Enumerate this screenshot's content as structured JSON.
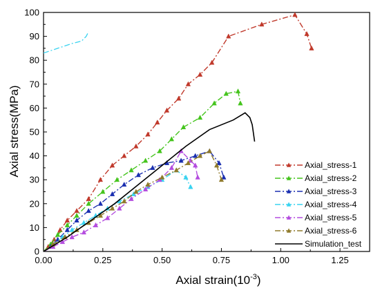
{
  "chart_data": {
    "type": "line",
    "xlabel": "Axial strain(10",
    "xlabel_sup": "-3",
    "xlabel_end": ")",
    "ylabel": "Axial stress(MPa)",
    "xlim": [
      0,
      1.375
    ],
    "ylim": [
      0,
      100
    ],
    "x_ticks": [
      "0.00",
      "0.25",
      "0.50",
      "0.75",
      "1.00",
      "1.25"
    ],
    "x_tick_values": [
      0,
      0.25,
      0.5,
      0.75,
      1.0,
      1.25
    ],
    "y_ticks": [
      "0",
      "10",
      "20",
      "30",
      "40",
      "50",
      "60",
      "70",
      "80",
      "90",
      "100"
    ],
    "y_tick_values": [
      0,
      10,
      20,
      30,
      40,
      50,
      60,
      70,
      80,
      90,
      100
    ],
    "legend_position": "right",
    "series": [
      {
        "name": "Axial_stress-1",
        "color": "#c0392b",
        "dash": "8,3,2,3",
        "marker": "triangle",
        "x": [
          0.0,
          0.02,
          0.045,
          0.07,
          0.1,
          0.14,
          0.19,
          0.24,
          0.29,
          0.34,
          0.39,
          0.44,
          0.48,
          0.52,
          0.57,
          0.61,
          0.66,
          0.71,
          0.78,
          0.92,
          1.06,
          1.11,
          1.13
        ],
        "y": [
          0,
          2,
          5,
          9,
          13,
          17,
          22,
          30,
          36,
          40,
          44,
          49,
          54,
          59,
          64,
          70,
          74,
          79,
          90,
          95,
          99,
          91,
          85
        ]
      },
      {
        "name": "Axial_stress-2",
        "color": "#44c41c",
        "dash": "8,3,2,3",
        "marker": "triangle",
        "x": [
          0.0,
          0.03,
          0.06,
          0.1,
          0.14,
          0.19,
          0.25,
          0.31,
          0.37,
          0.43,
          0.49,
          0.54,
          0.59,
          0.66,
          0.72,
          0.77,
          0.82,
          0.83
        ],
        "y": [
          0,
          3,
          7,
          11,
          15,
          20,
          25,
          30,
          34,
          38,
          42,
          47,
          52,
          56,
          62,
          66,
          67,
          62
        ]
      },
      {
        "name": "Axial_stress-3",
        "color": "#1a2fb0",
        "dash": "8,3,2,3",
        "marker": "triangle",
        "x": [
          0.0,
          0.03,
          0.06,
          0.1,
          0.14,
          0.19,
          0.24,
          0.29,
          0.34,
          0.4,
          0.46,
          0.52,
          0.58,
          0.64,
          0.7,
          0.74,
          0.76
        ],
        "y": [
          0,
          2,
          5,
          9,
          13,
          17,
          20,
          24,
          28,
          32,
          35,
          37,
          38,
          40,
          42,
          37,
          31
        ]
      },
      {
        "name": "Axial_stress-4",
        "color": "#39d3f0",
        "dash": "8,3,2,3",
        "marker": "triangle",
        "x": [
          0.0,
          0.04,
          0.08,
          0.12,
          0.17,
          0.22,
          0.27,
          0.32,
          0.38,
          0.44,
          0.5,
          0.56,
          0.6,
          0.62
        ],
        "y": [
          0,
          3,
          6,
          9,
          12,
          15,
          18,
          21,
          24,
          27,
          30,
          34,
          31,
          27
        ]
      },
      {
        "name": "Axial_stress-5",
        "color": "#b44cdf",
        "dash": "8,3,2,3",
        "marker": "triangle",
        "x": [
          0.0,
          0.04,
          0.08,
          0.12,
          0.17,
          0.22,
          0.27,
          0.32,
          0.37,
          0.43,
          0.49,
          0.54,
          0.58,
          0.62,
          0.64,
          0.65
        ],
        "y": [
          0,
          2,
          4,
          6,
          8,
          11,
          14,
          18,
          22,
          26,
          30,
          35,
          42,
          38,
          36,
          31
        ]
      },
      {
        "name": "Axial_stress-6",
        "color": "#8f7a2b",
        "dash": "8,3,2,3",
        "marker": "triangle",
        "x": [
          0.0,
          0.04,
          0.09,
          0.14,
          0.19,
          0.24,
          0.29,
          0.34,
          0.39,
          0.44,
          0.5,
          0.56,
          0.61,
          0.66,
          0.7,
          0.73,
          0.75
        ],
        "y": [
          0,
          3,
          6,
          9,
          12,
          15,
          18,
          21,
          25,
          28,
          31,
          34,
          37,
          40,
          42,
          36,
          30
        ]
      },
      {
        "name": "Simulation_test",
        "color": "#000000",
        "dash": "",
        "marker": "none",
        "x": [
          0.0,
          0.1,
          0.2,
          0.3,
          0.4,
          0.5,
          0.6,
          0.7,
          0.8,
          0.85,
          0.87,
          0.88,
          0.89
        ],
        "y": [
          0,
          6,
          13,
          20,
          28,
          36,
          44,
          51,
          55,
          58,
          56,
          53,
          46
        ]
      }
    ],
    "inset_fragment": {
      "color": "#39d3f0",
      "x": [
        0.0,
        0.06,
        0.12,
        0.16,
        0.18,
        0.19
      ],
      "y": [
        83,
        85,
        87,
        88,
        90,
        92
      ]
    }
  }
}
